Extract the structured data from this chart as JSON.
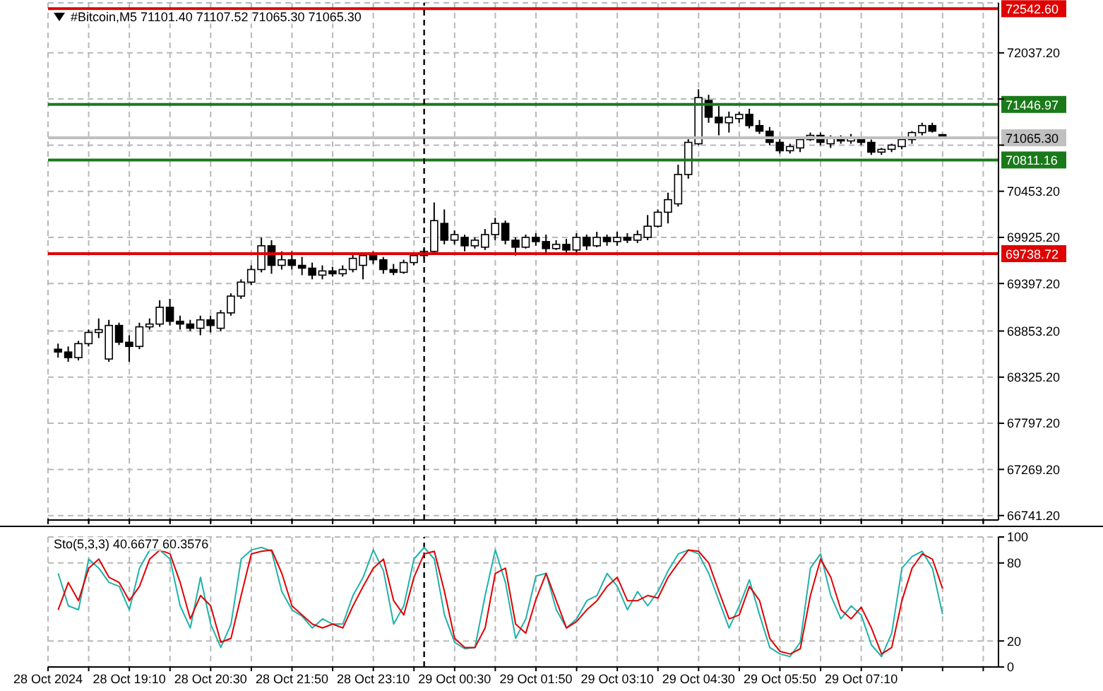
{
  "chart_data": [
    {
      "type": "candlestick",
      "title": "#Bitcoin,M5 71101.40 71107.52 71065.30 71065.30",
      "color": "#000000",
      "x": [
        "2024-10-28T18:00",
        "2024-10-28T18:10",
        "2024-10-28T18:20",
        "2024-10-28T18:30",
        "2024-10-28T18:40",
        "2024-10-28T18:50",
        "2024-10-28T19:00",
        "2024-10-28T19:10",
        "2024-10-28T19:20",
        "2024-10-28T19:30",
        "2024-10-28T19:40",
        "2024-10-28T19:50",
        "2024-10-28T20:00",
        "2024-10-28T20:10",
        "2024-10-28T20:20",
        "2024-10-28T20:30",
        "2024-10-28T20:40",
        "2024-10-28T20:50",
        "2024-10-28T21:00",
        "2024-10-28T21:10",
        "2024-10-28T21:20",
        "2024-10-28T21:30",
        "2024-10-28T21:40",
        "2024-10-28T21:50",
        "2024-10-28T22:00",
        "2024-10-28T22:10",
        "2024-10-28T22:20",
        "2024-10-28T22:30",
        "2024-10-28T22:40",
        "2024-10-28T22:50",
        "2024-10-28T23:00",
        "2024-10-28T23:10",
        "2024-10-28T23:20",
        "2024-10-28T23:30",
        "2024-10-28T23:40",
        "2024-10-28T23:50",
        "2024-10-29T00:00",
        "2024-10-29T00:10",
        "2024-10-29T00:20",
        "2024-10-29T00:30",
        "2024-10-29T00:40",
        "2024-10-29T00:50",
        "2024-10-29T01:00",
        "2024-10-29T01:10",
        "2024-10-29T01:20",
        "2024-10-29T01:30",
        "2024-10-29T01:40",
        "2024-10-29T01:50",
        "2024-10-29T02:00",
        "2024-10-29T02:10",
        "2024-10-29T02:20",
        "2024-10-29T02:30",
        "2024-10-29T02:40",
        "2024-10-29T02:50",
        "2024-10-29T03:00",
        "2024-10-29T03:10",
        "2024-10-29T03:20",
        "2024-10-29T03:30",
        "2024-10-29T03:40",
        "2024-10-29T03:50",
        "2024-10-29T04:00",
        "2024-10-29T04:10",
        "2024-10-29T04:20",
        "2024-10-29T04:30",
        "2024-10-29T04:40",
        "2024-10-29T04:50",
        "2024-10-29T05:00",
        "2024-10-29T05:10",
        "2024-10-29T05:20",
        "2024-10-29T05:30",
        "2024-10-29T05:40",
        "2024-10-29T05:50",
        "2024-10-29T06:00",
        "2024-10-29T06:10",
        "2024-10-29T06:20",
        "2024-10-29T06:30",
        "2024-10-29T06:40",
        "2024-10-29T06:50",
        "2024-10-29T07:00",
        "2024-10-29T07:10",
        "2024-10-29T07:20",
        "2024-10-29T07:30",
        "2024-10-29T07:40",
        "2024-10-29T07:50",
        "2024-10-29T08:00",
        "2024-10-29T08:10",
        "2024-10-29T08:20",
        "2024-10-29T08:30"
      ],
      "ohlc": [
        [
          68645,
          68709,
          68549,
          68613
        ],
        [
          68613,
          68677,
          68501,
          68549
        ],
        [
          68549,
          68741,
          68517,
          68709
        ],
        [
          68709,
          68869,
          68677,
          68837
        ],
        [
          68837,
          68997,
          68773,
          68869
        ],
        [
          68533,
          68981,
          68501,
          68917
        ],
        [
          68917,
          68949,
          68693,
          68725
        ],
        [
          68725,
          68805,
          68501,
          68677
        ],
        [
          68677,
          68949,
          68645,
          68901
        ],
        [
          68901,
          68997,
          68869,
          68933
        ],
        [
          68933,
          69205,
          68901,
          69125
        ],
        [
          69125,
          69221,
          68917,
          68965
        ],
        [
          68965,
          69029,
          68869,
          68933
        ],
        [
          68933,
          68981,
          68853,
          68885
        ],
        [
          68885,
          69029,
          68805,
          68981
        ],
        [
          68981,
          69029,
          68837,
          68917
        ],
        [
          68885,
          69093,
          68853,
          69061
        ],
        [
          69061,
          69285,
          69029,
          69253
        ],
        [
          69253,
          69445,
          69221,
          69413
        ],
        [
          69413,
          69605,
          69381,
          69557
        ],
        [
          69557,
          69925,
          69525,
          69829
        ],
        [
          69829,
          69893,
          69509,
          69605
        ],
        [
          69605,
          69765,
          69557,
          69669
        ],
        [
          69669,
          69765,
          69557,
          69605
        ],
        [
          69605,
          69701,
          69493,
          69573
        ],
        [
          69573,
          69637,
          69445,
          69493
        ],
        [
          69493,
          69605,
          69445,
          69541
        ],
        [
          69541,
          69589,
          69477,
          69509
        ],
        [
          69509,
          69605,
          69477,
          69557
        ],
        [
          69557,
          69733,
          69525,
          69685
        ],
        [
          69605,
          69749,
          69445,
          69717
        ],
        [
          69717,
          69765,
          69621,
          69669
        ],
        [
          69669,
          69701,
          69509,
          69557
        ],
        [
          69557,
          69621,
          69493,
          69525
        ],
        [
          69525,
          69669,
          69509,
          69637
        ],
        [
          69637,
          69749,
          69605,
          69717
        ],
        [
          69717,
          69797,
          69685,
          69765
        ],
        [
          69765,
          70325,
          69733,
          70117
        ],
        [
          70085,
          70245,
          69845,
          69893
        ],
        [
          69893,
          70005,
          69845,
          69957
        ],
        [
          69925,
          69957,
          69765,
          69829
        ],
        [
          69829,
          69925,
          69797,
          69893
        ],
        [
          69813,
          70021,
          69781,
          69957
        ],
        [
          69957,
          70149,
          69893,
          70085
        ],
        [
          70085,
          70117,
          69845,
          69893
        ],
        [
          69893,
          69925,
          69717,
          69813
        ],
        [
          69813,
          69957,
          69797,
          69925
        ],
        [
          69925,
          69973,
          69829,
          69877
        ],
        [
          69877,
          69957,
          69749,
          69797
        ],
        [
          69797,
          69893,
          69781,
          69845
        ],
        [
          69845,
          69909,
          69749,
          69781
        ],
        [
          69781,
          69973,
          69749,
          69925
        ],
        [
          69925,
          69957,
          69781,
          69829
        ],
        [
          69829,
          69989,
          69813,
          69925
        ],
        [
          69925,
          69957,
          69829,
          69877
        ],
        [
          69877,
          69989,
          69829,
          69925
        ],
        [
          69925,
          69973,
          69861,
          69893
        ],
        [
          69893,
          70005,
          69861,
          69957
        ],
        [
          69925,
          70181,
          69893,
          70053
        ],
        [
          70053,
          70245,
          70037,
          70213
        ],
        [
          70213,
          70437,
          70085,
          70357
        ],
        [
          70309,
          70757,
          70277,
          70645
        ],
        [
          70645,
          71077,
          70597,
          71013
        ],
        [
          70997,
          71621,
          70981,
          71525
        ],
        [
          71493,
          71557,
          71237,
          71301
        ],
        [
          71301,
          71429,
          71093,
          71237
        ],
        [
          71237,
          71365,
          71125,
          71301
        ],
        [
          71285,
          71365,
          71237,
          71333
        ],
        [
          71333,
          71397,
          71173,
          71205
        ],
        [
          71205,
          71269,
          71109,
          71141
        ],
        [
          71141,
          71189,
          70981,
          71013
        ],
        [
          71013,
          71061,
          70885,
          70917
        ],
        [
          70917,
          70997,
          70885,
          70965
        ],
        [
          70949,
          71045,
          70901,
          71045
        ],
        [
          71045,
          71125,
          71029,
          71093
        ],
        [
          71093,
          71125,
          70981,
          71013
        ],
        [
          70997,
          71093,
          70949,
          71061
        ],
        [
          71061,
          71093,
          70997,
          71029
        ],
        [
          71029,
          71109,
          70997,
          71061
        ],
        [
          71045,
          71077,
          70981,
          71013
        ],
        [
          71013,
          71045,
          70869,
          70901
        ],
        [
          70901,
          70949,
          70869,
          70933
        ],
        [
          70933,
          70997,
          70901,
          70981
        ],
        [
          70965,
          71061,
          70933,
          71045
        ],
        [
          71045,
          71141,
          70997,
          71125
        ],
        [
          71125,
          71237,
          71093,
          71205
        ],
        [
          71205,
          71237,
          71125,
          71141
        ],
        [
          71101.4,
          71107.52,
          71065.3,
          71065.3
        ]
      ],
      "xlim": [
        "2024-10-28T17:50",
        "2024-10-29T09:25"
      ],
      "xticks": [
        "2024-10-28T17:50",
        "2024-10-28T18:30",
        "2024-10-28T19:10",
        "2024-10-28T19:50",
        "2024-10-28T20:30",
        "2024-10-28T21:10",
        "2024-10-28T21:50",
        "2024-10-28T22:30",
        "2024-10-28T23:10",
        "2024-10-28T23:50",
        "2024-10-29T00:30",
        "2024-10-29T01:10",
        "2024-10-29T01:50",
        "2024-10-29T02:30",
        "2024-10-29T03:10",
        "2024-10-29T03:50",
        "2024-10-29T04:30",
        "2024-10-29T05:10",
        "2024-10-29T05:50",
        "2024-10-29T06:30",
        "2024-10-29T07:10",
        "2024-10-29T07:50",
        "2024-10-29T08:30",
        "2024-10-29T09:10"
      ],
      "ylim": [
        66690,
        72610
      ],
      "yticks": [
        {
          "value": 72037.2,
          "label": "72037.20"
        },
        {
          "value": 71509.2,
          "label": null
        },
        {
          "value": 70981.2,
          "label": null
        },
        {
          "value": 70453.2,
          "label": "70453.20"
        },
        {
          "value": 69925.2,
          "label": "69925.20"
        },
        {
          "value": 69397.2,
          "label": "69397.20"
        },
        {
          "value": 68853.2,
          "label": "68853.20"
        },
        {
          "value": 68325.2,
          "label": "68325.20"
        },
        {
          "value": 67797.2,
          "label": "67797.20"
        },
        {
          "value": 67269.2,
          "label": "67269.20"
        },
        {
          "value": 66741.2,
          "label": "66741.20"
        }
      ],
      "ref_lines": [
        {
          "axis": "y",
          "value": 72542.6,
          "label": "72542.60",
          "color": "#e00000"
        },
        {
          "axis": "y",
          "value": 71446.97,
          "label": "71446.97",
          "color": "#1a7a1a"
        },
        {
          "axis": "y",
          "value": 71065.3,
          "label": "71065.30",
          "color": "#c0c0c0"
        },
        {
          "axis": "y",
          "value": 70811.16,
          "label": "70811.16",
          "color": "#1a7a1a"
        },
        {
          "axis": "y",
          "value": 69738.72,
          "label": "69738.72",
          "color": "#e00000"
        },
        {
          "axis": "x",
          "value": "2024-10-29T00:00",
          "color": "#000000",
          "line_style": "dashed"
        }
      ],
      "grid": true,
      "tick_labels": "y"
    },
    {
      "type": "line",
      "title": "Sto(5,3,3) 40.6677 60.3576",
      "x": [
        "2024-10-28T18:00",
        "2024-10-28T18:10",
        "2024-10-28T18:20",
        "2024-10-28T18:30",
        "2024-10-28T18:40",
        "2024-10-28T18:50",
        "2024-10-28T19:00",
        "2024-10-28T19:10",
        "2024-10-28T19:20",
        "2024-10-28T19:30",
        "2024-10-28T19:40",
        "2024-10-28T19:50",
        "2024-10-28T20:00",
        "2024-10-28T20:10",
        "2024-10-28T20:20",
        "2024-10-28T20:30",
        "2024-10-28T20:40",
        "2024-10-28T20:50",
        "2024-10-28T21:00",
        "2024-10-28T21:10",
        "2024-10-28T21:20",
        "2024-10-28T21:30",
        "2024-10-28T21:40",
        "2024-10-28T21:50",
        "2024-10-28T22:00",
        "2024-10-28T22:10",
        "2024-10-28T22:20",
        "2024-10-28T22:30",
        "2024-10-28T22:40",
        "2024-10-28T22:50",
        "2024-10-28T23:00",
        "2024-10-28T23:10",
        "2024-10-28T23:20",
        "2024-10-28T23:30",
        "2024-10-28T23:40",
        "2024-10-28T23:50",
        "2024-10-29T00:00",
        "2024-10-29T00:10",
        "2024-10-29T00:20",
        "2024-10-29T00:30",
        "2024-10-29T00:40",
        "2024-10-29T00:50",
        "2024-10-29T01:00",
        "2024-10-29T01:10",
        "2024-10-29T01:20",
        "2024-10-29T01:30",
        "2024-10-29T01:40",
        "2024-10-29T01:50",
        "2024-10-29T02:00",
        "2024-10-29T02:10",
        "2024-10-29T02:20",
        "2024-10-29T02:30",
        "2024-10-29T02:40",
        "2024-10-29T02:50",
        "2024-10-29T03:00",
        "2024-10-29T03:10",
        "2024-10-29T03:20",
        "2024-10-29T03:30",
        "2024-10-29T03:40",
        "2024-10-29T03:50",
        "2024-10-29T04:00",
        "2024-10-29T04:10",
        "2024-10-29T04:20",
        "2024-10-29T04:30",
        "2024-10-29T04:40",
        "2024-10-29T04:50",
        "2024-10-29T05:00",
        "2024-10-29T05:10",
        "2024-10-29T05:20",
        "2024-10-29T05:30",
        "2024-10-29T05:40",
        "2024-10-29T05:50",
        "2024-10-29T06:00",
        "2024-10-29T06:10",
        "2024-10-29T06:20",
        "2024-10-29T06:30",
        "2024-10-29T06:40",
        "2024-10-29T06:50",
        "2024-10-29T07:00",
        "2024-10-29T07:10",
        "2024-10-29T07:20",
        "2024-10-29T07:30",
        "2024-10-29T07:40",
        "2024-10-29T07:50",
        "2024-10-29T08:00",
        "2024-10-29T08:10",
        "2024-10-29T08:20",
        "2024-10-29T08:30"
      ],
      "series": [
        {
          "color": "#20b2aa",
          "values": [
            72,
            47,
            44,
            83,
            76,
            65,
            62,
            44,
            76,
            90,
            90,
            83,
            47,
            30,
            69,
            33,
            15,
            33,
            83,
            90,
            92,
            89,
            58,
            44,
            39,
            30,
            37,
            33,
            33,
            55,
            69,
            90,
            74,
            33,
            47,
            83,
            92,
            83,
            40,
            19,
            14,
            15,
            55,
            90,
            65,
            22,
            37,
            70,
            72,
            44,
            30,
            37,
            51,
            55,
            72,
            62,
            44,
            58,
            47,
            58,
            74,
            87,
            90,
            87,
            72,
            51,
            30,
            47,
            67,
            40,
            15,
            10,
            8,
            19,
            76,
            87,
            55,
            37,
            47,
            40,
            17,
            8,
            26,
            76,
            85,
            89,
            76,
            40.6677
          ]
        },
        {
          "color": "#e00000",
          "values": [
            44,
            65,
            51,
            76,
            83,
            69,
            65,
            51,
            62,
            83,
            90,
            87,
            65,
            37,
            55,
            47,
            19,
            22,
            55,
            87,
            89,
            90,
            72,
            47,
            40,
            33,
            30,
            33,
            30,
            47,
            62,
            76,
            83,
            51,
            40,
            69,
            87,
            89,
            58,
            22,
            15,
            15,
            30,
            72,
            76,
            33,
            26,
            52,
            72,
            51,
            30,
            35,
            44,
            51,
            62,
            69,
            51,
            51,
            55,
            53,
            69,
            80,
            90,
            89,
            80,
            58,
            37,
            40,
            62,
            51,
            22,
            12,
            10,
            14,
            55,
            83,
            69,
            44,
            37,
            46,
            30,
            10,
            15,
            51,
            76,
            87,
            83,
            60.3576
          ]
        }
      ],
      "xlim": [
        "2024-10-28T17:50",
        "2024-10-29T09:25"
      ],
      "xticks": [
        {
          "value": "2024-10-28T17:50",
          "label": "28 Oct 2024"
        },
        {
          "value": "2024-10-28T18:30",
          "label": null
        },
        {
          "value": "2024-10-28T19:10",
          "label": "28 Oct 19:10"
        },
        {
          "value": "2024-10-28T19:50",
          "label": null
        },
        {
          "value": "2024-10-28T20:30",
          "label": "28 Oct 20:30"
        },
        {
          "value": "2024-10-28T21:10",
          "label": null
        },
        {
          "value": "2024-10-28T21:50",
          "label": "28 Oct 21:50"
        },
        {
          "value": "2024-10-28T22:30",
          "label": null
        },
        {
          "value": "2024-10-28T23:10",
          "label": "28 Oct 23:10"
        },
        {
          "value": "2024-10-28T23:50",
          "label": null
        },
        {
          "value": "2024-10-29T00:30",
          "label": "29 Oct 00:30"
        },
        {
          "value": "2024-10-29T01:10",
          "label": null
        },
        {
          "value": "2024-10-29T01:50",
          "label": "29 Oct 01:50"
        },
        {
          "value": "2024-10-29T02:30",
          "label": null
        },
        {
          "value": "2024-10-29T03:10",
          "label": "29 Oct 03:10"
        },
        {
          "value": "2024-10-29T03:50",
          "label": null
        },
        {
          "value": "2024-10-29T04:30",
          "label": "29 Oct 04:30"
        },
        {
          "value": "2024-10-29T05:10",
          "label": null
        },
        {
          "value": "2024-10-29T05:50",
          "label": "29 Oct 05:50"
        },
        {
          "value": "2024-10-29T06:30",
          "label": null
        },
        {
          "value": "2024-10-29T07:10",
          "label": "29 Oct 07:10"
        },
        {
          "value": "2024-10-29T07:50",
          "label": null
        },
        {
          "value": "2024-10-29T08:30",
          "label": null
        },
        {
          "value": "2024-10-29T09:10",
          "label": null
        }
      ],
      "ylim": [
        0,
        100
      ],
      "yticks": [
        0,
        20,
        80,
        100
      ],
      "ref_lines": [
        {
          "axis": "x",
          "value": "2024-10-29T00:00",
          "color": "#000000",
          "line_style": "dashed"
        }
      ],
      "grid": true,
      "marker": "none"
    }
  ]
}
